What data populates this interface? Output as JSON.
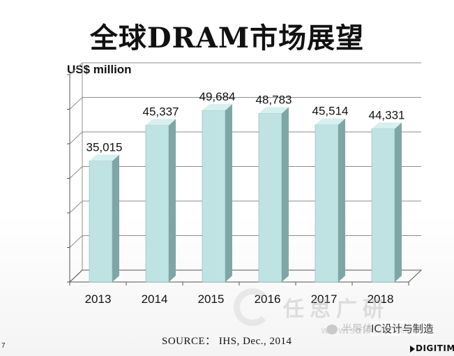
{
  "slide": {
    "title": "全球DRAM市场展望",
    "source": "SOURCE： IHS, Dec., 2014",
    "page_number": "7"
  },
  "watermark": {
    "brand_cn": "任思广研",
    "wechat_label": "半导体行业观察",
    "wechat_label2": "IC设计与制造",
    "url": "www.shifdun.com",
    "logo": "DIGITIM"
  },
  "chart_data": {
    "type": "bar",
    "title": "",
    "ylabel": "US$ million",
    "xlabel": "",
    "categories": [
      "2013",
      "2014",
      "2015",
      "2016",
      "2017",
      "2018"
    ],
    "values": [
      35015,
      45337,
      49684,
      48783,
      45514,
      44331
    ],
    "value_labels": [
      "35,015",
      "45,337",
      "49,684",
      "48,783",
      "45,514",
      "44,331"
    ],
    "ylim": [
      0,
      60000
    ],
    "grid": true,
    "style": "3d-column",
    "colors": {
      "bar_front": "#bfe3e3",
      "bar_side": "#7fa6a6",
      "bar_top": "#d6efef",
      "grid": "#8c8c8c"
    }
  }
}
